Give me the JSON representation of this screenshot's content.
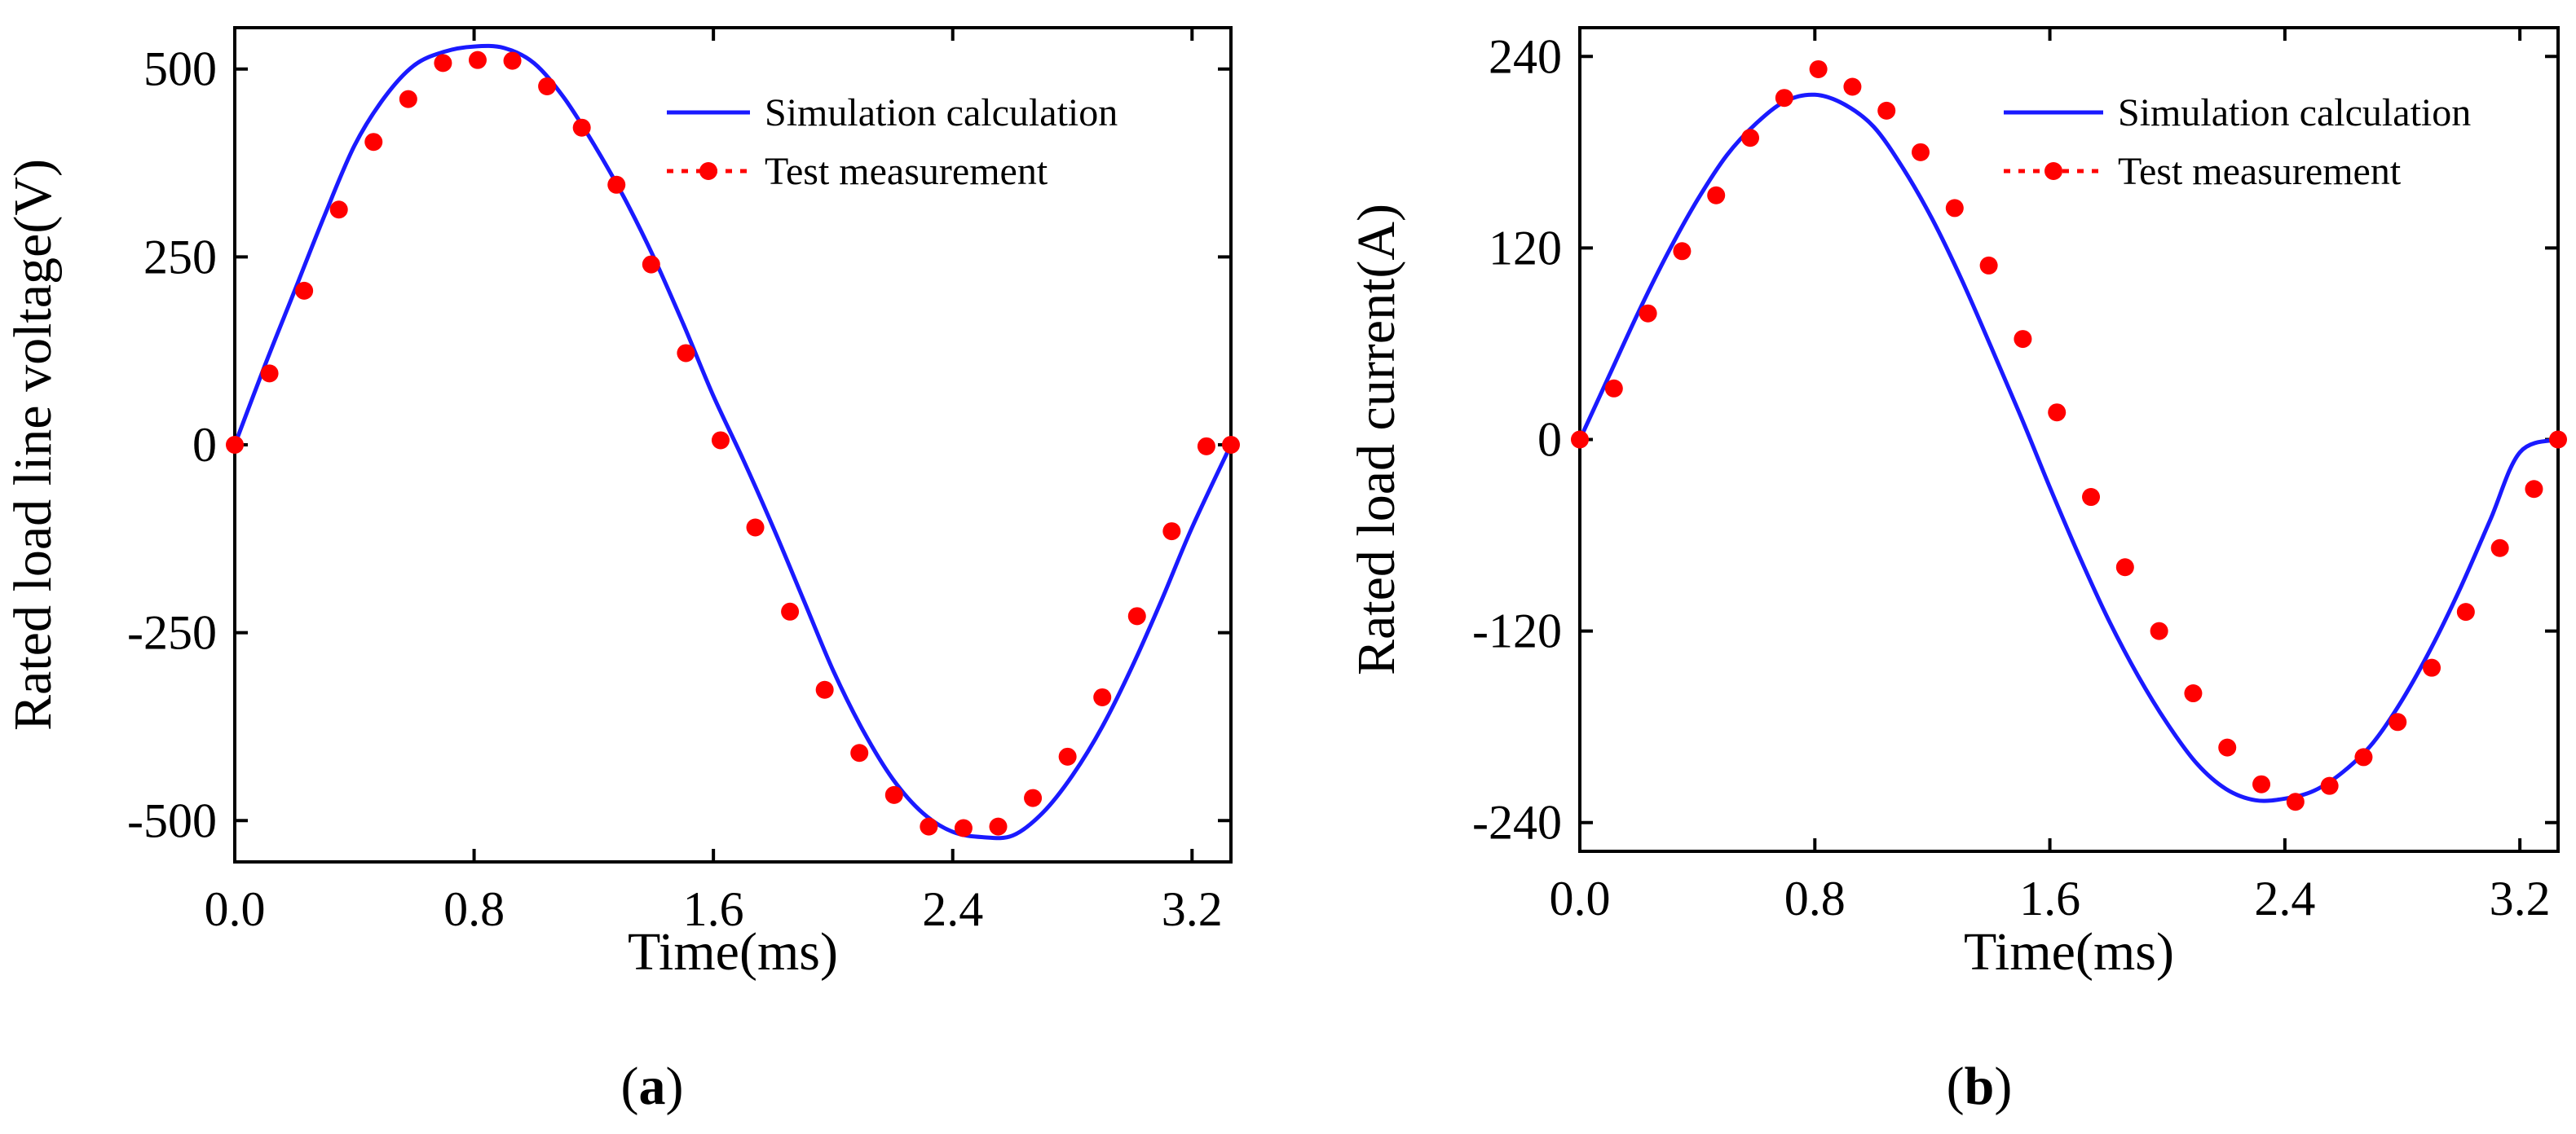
{
  "chart_data": [
    {
      "panel": "a",
      "type": "line",
      "panel_label": {
        "open": "(",
        "letter": "a",
        "close": ")"
      },
      "xlabel": "Time(ms)",
      "ylabel": "Rated load line voltage(V)",
      "xlim": [
        0.0,
        3.33
      ],
      "ylim": [
        -555,
        555
      ],
      "xticks": [
        0.0,
        0.8,
        1.6,
        2.4,
        3.2
      ],
      "xtick_labels": [
        "0.0",
        "0.8",
        "1.6",
        "2.4",
        "3.2"
      ],
      "yticks": [
        500,
        250,
        0,
        -250,
        -500
      ],
      "ytick_labels": [
        "500",
        "250",
        "0",
        "-250",
        "-500"
      ],
      "legend": {
        "position": "top-right",
        "entries": [
          "Simulation calculation",
          "Test measurement"
        ]
      },
      "series": [
        {
          "name": "Simulation calculation",
          "style": "line",
          "color": "#1a1aff",
          "x": [
            0.0,
            0.1,
            0.2,
            0.3,
            0.4,
            0.5,
            0.6,
            0.7,
            0.8,
            0.9,
            1.0,
            1.1,
            1.2,
            1.3,
            1.4,
            1.5,
            1.6,
            1.7,
            1.8,
            1.9,
            2.0,
            2.1,
            2.2,
            2.3,
            2.4,
            2.5,
            2.6,
            2.7,
            2.8,
            2.9,
            3.0,
            3.1,
            3.2,
            3.33
          ],
          "values": [
            0,
            105,
            205,
            305,
            398,
            462,
            505,
            523,
            530,
            528,
            508,
            462,
            400,
            330,
            250,
            160,
            65,
            -20,
            -110,
            -205,
            -300,
            -380,
            -445,
            -490,
            -515,
            -522,
            -520,
            -490,
            -440,
            -375,
            -295,
            -205,
            -110,
            0
          ]
        },
        {
          "name": "Test measurement",
          "style": "markers",
          "color": "#ff0000",
          "x": [
            0.0,
            0.116,
            0.232,
            0.348,
            0.464,
            0.58,
            0.696,
            0.812,
            0.928,
            1.044,
            1.16,
            1.276,
            1.392,
            1.508,
            1.624,
            1.74,
            1.856,
            1.972,
            2.088,
            2.204,
            2.32,
            2.436,
            2.552,
            2.668,
            2.784,
            2.9,
            3.016,
            3.132,
            3.248,
            3.33
          ],
          "values": [
            0,
            95,
            205,
            313,
            403,
            460,
            508,
            512,
            511,
            477,
            422,
            346,
            240,
            122,
            6,
            -110,
            -222,
            -326,
            -410,
            -466,
            -508,
            -510,
            -508,
            -470,
            -415,
            -336,
            -228,
            -115,
            -2,
            0
          ]
        }
      ]
    },
    {
      "panel": "b",
      "type": "line",
      "panel_label": {
        "open": "(",
        "letter": "b",
        "close": ")"
      },
      "xlabel": "Time(ms)",
      "ylabel": "Rated load current(A)",
      "xlim": [
        0.0,
        3.33
      ],
      "ylim": [
        -258,
        258
      ],
      "xticks": [
        0.0,
        0.8,
        1.6,
        2.4,
        3.2
      ],
      "xtick_labels": [
        "0.0",
        "0.8",
        "1.6",
        "2.4",
        "3.2"
      ],
      "yticks": [
        240,
        120,
        0,
        -120,
        -240
      ],
      "ytick_labels": [
        "240",
        "120",
        "0",
        "-120",
        "-240"
      ],
      "legend": {
        "position": "top-right",
        "entries": [
          "Simulation calculation",
          "Test measurement"
        ]
      },
      "series": [
        {
          "name": "Simulation calculation",
          "style": "line",
          "color": "#1a1aff",
          "x": [
            0.0,
            0.1,
            0.2,
            0.3,
            0.4,
            0.5,
            0.6,
            0.7,
            0.8,
            0.9,
            1.0,
            1.1,
            1.2,
            1.3,
            1.4,
            1.5,
            1.6,
            1.7,
            1.8,
            1.9,
            2.0,
            2.1,
            2.2,
            2.3,
            2.4,
            2.5,
            2.6,
            2.7,
            2.8,
            2.9,
            3.0,
            3.1,
            3.2,
            3.33
          ],
          "values": [
            0,
            40,
            80,
            117,
            150,
            178,
            198,
            212,
            216,
            210,
            196,
            170,
            138,
            100,
            58,
            15,
            -30,
            -73,
            -113,
            -148,
            -178,
            -203,
            -219,
            -226,
            -225,
            -220,
            -208,
            -190,
            -163,
            -130,
            -92,
            -50,
            -8,
            0
          ]
        },
        {
          "name": "Test measurement",
          "style": "markers",
          "color": "#ff0000",
          "x": [
            0.0,
            0.116,
            0.232,
            0.348,
            0.464,
            0.58,
            0.696,
            0.812,
            0.928,
            1.044,
            1.16,
            1.276,
            1.392,
            1.508,
            1.624,
            1.74,
            1.856,
            1.972,
            2.088,
            2.204,
            2.32,
            2.436,
            2.552,
            2.668,
            2.784,
            2.9,
            3.016,
            3.132,
            3.248,
            3.33
          ],
          "values": [
            0,
            32,
            79,
            118,
            153,
            189,
            214,
            232,
            221,
            206,
            180,
            145,
            109,
            63,
            17,
            -36,
            -80,
            -120,
            -159,
            -193,
            -216,
            -227,
            -217,
            -199,
            -177,
            -143,
            -108,
            -68,
            -31,
            0
          ]
        }
      ]
    }
  ]
}
